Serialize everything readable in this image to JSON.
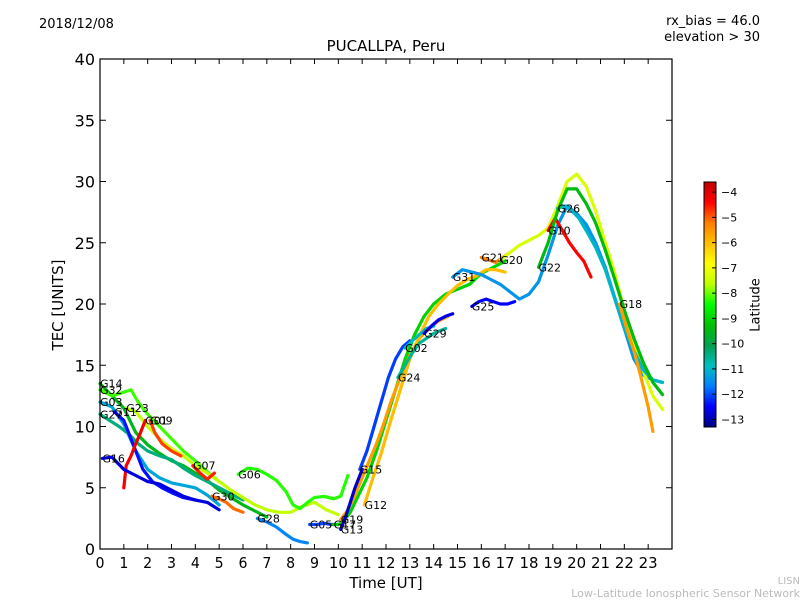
{
  "header": {
    "date": "2018/12/08",
    "title": "PUCALLPA, Peru",
    "rx_bias": "rx_bias = 46.0",
    "elevation": "elevation > 30"
  },
  "footer": {
    "lisn_short": "LISN",
    "lisn_full": "Low-Latitude Ionospheric Sensor Network"
  },
  "chart_data": {
    "type": "scatter",
    "title": "PUCALLPA, Peru",
    "xlabel": "Time [UT]",
    "ylabel": "TEC [UNITS]",
    "xlim": [
      0,
      24
    ],
    "ylim": [
      0,
      40
    ],
    "xticks": [
      "0",
      "1",
      "2",
      "3",
      "4",
      "5",
      "6",
      "7",
      "8",
      "9",
      "10",
      "11",
      "12",
      "13",
      "14",
      "15",
      "16",
      "17",
      "18",
      "19",
      "20",
      "21",
      "22",
      "23"
    ],
    "yticks": [
      "0",
      "5",
      "10",
      "15",
      "20",
      "25",
      "30",
      "35",
      "40"
    ],
    "grid": false,
    "colorbar": {
      "label": "Latitude",
      "range": [
        -13.3,
        -3.6
      ],
      "ticks": [
        "−4",
        "−5",
        "−6",
        "−7",
        "−8",
        "−9",
        "−10",
        "−11",
        "−12",
        "−13"
      ],
      "colormap": [
        "#00007f",
        "#0000ff",
        "#007fff",
        "#00bfbf",
        "#00a050",
        "#00c000",
        "#00ff00",
        "#bfff00",
        "#ffff00",
        "#ffbf00",
        "#ff7f00",
        "#ff0000",
        "#bf0000"
      ]
    },
    "series": [
      {
        "name": "G14",
        "lat": -9.5,
        "x": [
          0,
          0.5,
          1,
          1.5,
          2,
          2.5,
          3,
          3.5,
          4,
          4.5,
          5,
          5.5,
          6,
          6.5,
          7
        ],
        "y": [
          13.5,
          12.5,
          11.5,
          9.5,
          8.5,
          7.8,
          7.2,
          6.8,
          6.2,
          5.6,
          4.8,
          4.2,
          3.6,
          3.1,
          2.6
        ]
      },
      {
        "name": "G32",
        "lat": -8.2,
        "x": [
          0,
          0.5,
          1,
          1.3,
          1.6,
          2,
          2.5,
          3,
          3.5,
          4,
          4.5,
          5
        ],
        "y": [
          13,
          12.5,
          12.8,
          13,
          12,
          11,
          10,
          9,
          8,
          7.2,
          6.3,
          5.5
        ]
      },
      {
        "name": "G03",
        "lat": -11.2,
        "x": [
          0,
          0.5,
          1,
          1.5,
          2,
          2.5,
          3,
          3.5,
          4,
          4.5,
          5
        ],
        "y": [
          12,
          11.6,
          10.2,
          8,
          6.5,
          5.8,
          5.4,
          5.2,
          5,
          4.4,
          3.6
        ]
      },
      {
        "name": "G27",
        "lat": -10.4,
        "x": [
          0,
          0.4,
          0.8,
          1.2,
          1.6,
          2,
          2.5,
          3,
          3.5,
          4,
          4.5,
          5,
          5.5,
          6
        ],
        "y": [
          11,
          10.5,
          10,
          9.4,
          8.6,
          8,
          7.6,
          7.3,
          6.6,
          6,
          5.5,
          5,
          4.5,
          4
        ]
      },
      {
        "name": "G11",
        "lat": -12.4,
        "x": [
          0.6,
          1,
          1.4,
          1.8,
          2.2,
          2.6,
          3,
          3.5,
          4
        ],
        "y": [
          11.2,
          10.5,
          8.5,
          6.5,
          5.5,
          5,
          4.6,
          4.2,
          4
        ]
      },
      {
        "name": "G23",
        "lat": -7.6,
        "x": [
          1.1,
          1.5,
          2,
          2.5,
          3,
          3.5,
          4,
          4.5,
          5,
          5.5,
          6,
          6.5,
          7,
          7.5,
          8,
          8.5,
          9,
          9.5,
          10
        ],
        "y": [
          11.5,
          11.2,
          10,
          9,
          8.2,
          7.6,
          6.8,
          6.2,
          5.5,
          4.8,
          4.2,
          3.6,
          3.2,
          3,
          3,
          3.5,
          3.8,
          3.2,
          2.8
        ]
      },
      {
        "name": "G09",
        "lat": -4.8,
        "x": [
          2.1,
          2.3,
          2.6,
          3,
          3.4
        ],
        "y": [
          10.5,
          9.5,
          8.6,
          8,
          7.6
        ]
      },
      {
        "name": "G01",
        "lat": -4.3,
        "x": [
          1.9,
          1.7,
          1.5,
          1.3,
          1.1,
          1.0
        ],
        "y": [
          10.5,
          9.5,
          8.6,
          7.6,
          6.8,
          5
        ]
      },
      {
        "name": "G16",
        "lat": -12.7,
        "x": [
          0.1,
          0.5,
          1,
          1.5,
          2,
          2.5,
          3,
          3.5,
          4,
          4.5,
          5
        ],
        "y": [
          7.4,
          7.5,
          6.5,
          6,
          5.5,
          5.3,
          4.8,
          4.3,
          4,
          3.8,
          3.2
        ]
      },
      {
        "name": "G07",
        "lat": -4.6,
        "x": [
          3.9,
          4.2,
          4.5,
          4.8
        ],
        "y": [
          6.8,
          6.2,
          5.7,
          6.2
        ]
      },
      {
        "name": "G06",
        "lat": -8.3,
        "x": [
          5.8,
          6.2,
          6.6,
          7,
          7.4,
          7.8,
          8.1,
          8.4,
          8.7,
          9,
          9.4,
          9.8,
          10.1,
          10.4
        ],
        "y": [
          6.1,
          6.6,
          6.5,
          6.1,
          5.6,
          4.7,
          3.6,
          3.3,
          3.8,
          4.2,
          4.3,
          4.1,
          4.3,
          6
        ]
      },
      {
        "name": "G30",
        "lat": -5.1,
        "x": [
          4.7,
          5,
          5.3,
          5.6,
          6
        ],
        "y": [
          4.3,
          4.1,
          3.8,
          3.3,
          3
        ]
      },
      {
        "name": "G28",
        "lat": -11.6,
        "x": [
          6.6,
          7,
          7.4,
          7.8,
          8.1,
          8.4,
          8.7
        ],
        "y": [
          2.5,
          2.2,
          1.8,
          1.2,
          0.8,
          0.6,
          0.5
        ]
      },
      {
        "name": "G05",
        "lat": -12.0,
        "x": [
          8.8,
          9.1,
          9.4,
          9.7,
          10
        ],
        "y": [
          2,
          2,
          2.1,
          2,
          2
        ]
      },
      {
        "name": "G17",
        "lat": -9.0,
        "x": [
          9.8,
          10,
          10.2,
          10.5,
          10.8,
          11.2,
          11.6,
          12,
          12.4,
          12.8,
          13.2,
          13.6,
          14,
          14.5,
          15,
          15.5,
          16,
          16.5,
          17
        ],
        "y": [
          2,
          2,
          2.2,
          3,
          4.2,
          5.8,
          8,
          10.5,
          13,
          15.5,
          17.5,
          19,
          20,
          20.8,
          21.2,
          21.6,
          22.5,
          23,
          23.5
        ]
      },
      {
        "name": "G19",
        "lat": -5.6,
        "x": [
          10.1,
          10.4,
          10.7,
          11,
          11.3,
          11.6,
          11.9,
          12.2,
          12.6,
          13,
          13.4,
          13.8,
          14.2,
          14.6
        ],
        "y": [
          2.4,
          3.2,
          4.4,
          5.8,
          7.2,
          8.6,
          10.2,
          12,
          14,
          15.8,
          17.2,
          18,
          18.6,
          19
        ]
      },
      {
        "name": "G13",
        "lat": -12.8,
        "x": [
          10.1,
          10.3,
          10.5,
          10.7,
          11
        ],
        "y": [
          1.6,
          2.6,
          3.8,
          5,
          6.5
        ]
      },
      {
        "name": "G12",
        "lat": -6.0,
        "x": [
          11.1,
          11.4,
          11.8,
          12.2,
          12.6,
          13,
          13.4,
          13.8,
          14.2,
          14.6,
          15,
          15.4,
          15.8,
          16.2,
          16.6,
          17
        ],
        "y": [
          3.6,
          5.5,
          7.8,
          10.5,
          13,
          15.5,
          17.4,
          19,
          20,
          20.8,
          21.5,
          22,
          22.3,
          22.8,
          22.8,
          22.6
        ]
      },
      {
        "name": "G15",
        "lat": -12.1,
        "x": [
          10.9,
          11.2,
          11.5,
          11.8,
          12.1,
          12.4,
          12.7,
          13
        ],
        "y": [
          6.5,
          8,
          10,
          12,
          14,
          15.5,
          16.5,
          17
        ]
      },
      {
        "name": "G24",
        "lat": -10.6,
        "x": [
          12.5,
          12.8,
          13.1,
          13.4,
          13.7,
          14,
          14.5
        ],
        "y": [
          14,
          15,
          16,
          16.8,
          17.2,
          17.6,
          18
        ]
      },
      {
        "name": "G02",
        "lat": -10.8,
        "x": [
          12.8,
          13.1,
          13.4,
          13.7,
          14
        ],
        "y": [
          16.4,
          17,
          17.5,
          18,
          18.2
        ]
      },
      {
        "name": "G29",
        "lat": -12.6,
        "x": [
          13.6,
          13.9,
          14.2,
          14.5,
          14.8
        ],
        "y": [
          17.6,
          18.2,
          18.7,
          19,
          19.2
        ]
      },
      {
        "name": "G21",
        "lat": -5.2,
        "x": [
          16,
          16.3,
          16.6,
          16.9,
          17.2
        ],
        "y": [
          23.8,
          23.6,
          23.4,
          23.8,
          24.2
        ]
      },
      {
        "name": "G25",
        "lat": -12.5,
        "x": [
          15.6,
          15.9,
          16.2,
          16.5,
          16.8,
          17.1,
          17.4
        ],
        "y": [
          19.8,
          20.2,
          20.4,
          20.2,
          20,
          20,
          20.2
        ]
      },
      {
        "name": "G31",
        "lat": -11.4,
        "x": [
          14.8,
          15.2,
          15.6,
          16,
          16.4,
          16.8,
          17.2,
          17.6,
          18,
          18.4,
          18.8,
          19.2,
          19.6,
          20,
          20.4,
          20.8,
          21.2,
          21.6,
          22,
          22.4,
          22.8,
          23.2,
          23.6
        ],
        "y": [
          22.2,
          22.8,
          22.6,
          22.4,
          22,
          21.6,
          21,
          20.4,
          20.8,
          21.8,
          24,
          26.4,
          28,
          27.4,
          26.5,
          25,
          23,
          20.5,
          18,
          15.5,
          14.2,
          13.8,
          13.6
        ]
      },
      {
        "name": "G20",
        "lat": -7.3,
        "x": [
          16.8,
          17.2,
          17.6,
          18,
          18.4,
          18.8,
          19.2,
          19.6,
          20,
          20.4,
          20.8,
          21.2,
          21.6,
          22,
          22.4,
          22.8,
          23.2,
          23.6
        ],
        "y": [
          23.6,
          24.2,
          24.8,
          25.2,
          25.6,
          26.2,
          28,
          30,
          30.6,
          29.6,
          27.6,
          25,
          22.5,
          19.5,
          16.8,
          14.5,
          12.5,
          11.4
        ]
      },
      {
        "name": "G10",
        "lat": -4.4,
        "x": [
          18.8,
          19.1,
          19.4,
          19.7,
          20,
          20.3,
          20.6
        ],
        "y": [
          26,
          27,
          26,
          25,
          24.2,
          23.5,
          22.2
        ]
      },
      {
        "name": "G26",
        "lat": -11.0,
        "x": [
          19.2,
          19.5,
          19.8,
          20.1,
          20.4,
          20.8,
          21.2,
          21.6,
          22,
          22.4,
          22.8,
          23.2,
          23.6
        ],
        "y": [
          27.8,
          28,
          27.6,
          27,
          26,
          24.6,
          22.8,
          20.4,
          18,
          16.2,
          14.6,
          13.8,
          13.6
        ]
      },
      {
        "name": "G22",
        "lat": -9.4,
        "x": [
          18.4,
          18.8,
          19.2,
          19.6,
          20,
          20.4,
          20.8,
          21.2,
          21.6,
          22,
          22.4,
          22.8,
          23.2,
          23.6
        ],
        "y": [
          23,
          25,
          27.6,
          29.4,
          29.4,
          28.2,
          26.6,
          24.4,
          22,
          19.5,
          17.2,
          15.2,
          13.6,
          12.6
        ]
      },
      {
        "name": "G18",
        "lat": -5.6,
        "x": [
          21.8,
          22.1,
          22.4,
          22.7,
          23,
          23.2
        ],
        "y": [
          20,
          18,
          16.2,
          14,
          11.6,
          9.6
        ]
      }
    ]
  }
}
